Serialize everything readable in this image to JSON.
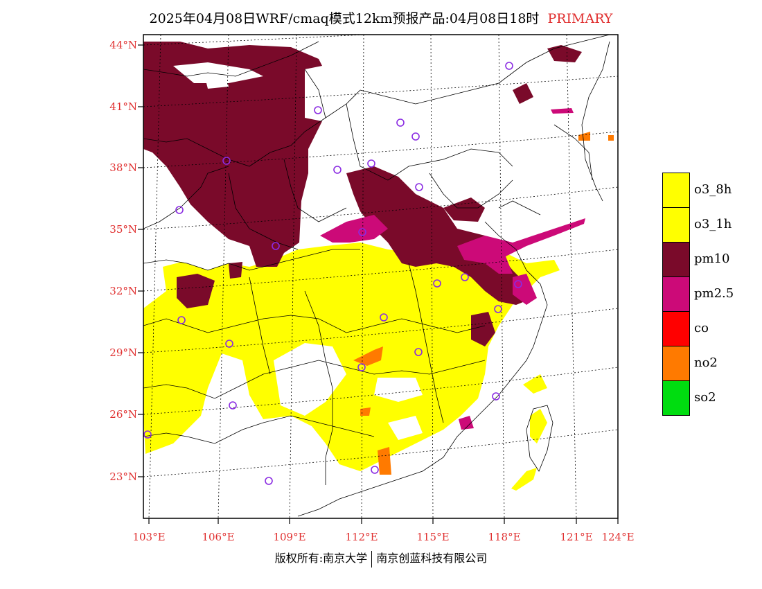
{
  "title": {
    "main": "2025年04月08日WRF/cmaq模式12km预报产品:04月08日18时",
    "primary": "PRIMARY"
  },
  "axes": {
    "lat_labels": [
      "44°N",
      "41°N",
      "38°N",
      "35°N",
      "32°N",
      "29°N",
      "26°N",
      "23°N"
    ],
    "lon_labels": [
      "103°E",
      "106°E",
      "109°E",
      "112°E",
      "115°E",
      "118°E",
      "121°E",
      "124°E"
    ]
  },
  "legend": {
    "items": [
      {
        "label": "o3_8h",
        "color": "#ffff00"
      },
      {
        "label": "o3_1h",
        "color": "#ffff00"
      },
      {
        "label": "pm10",
        "color": "#7a0a2a"
      },
      {
        "label": "pm2.5",
        "color": "#cc0a78"
      },
      {
        "label": "co",
        "color": "#ff0000"
      },
      {
        "label": "no2",
        "color": "#ff7a00"
      },
      {
        "label": "so2",
        "color": "#00dd10"
      }
    ]
  },
  "footer": {
    "left": "版权所有:南京大学",
    "right": "南京创蓝科技有限公司"
  },
  "colors": {
    "label_red": "#e03030",
    "station_marker": "#8a2be2",
    "boundary": "#000000"
  }
}
